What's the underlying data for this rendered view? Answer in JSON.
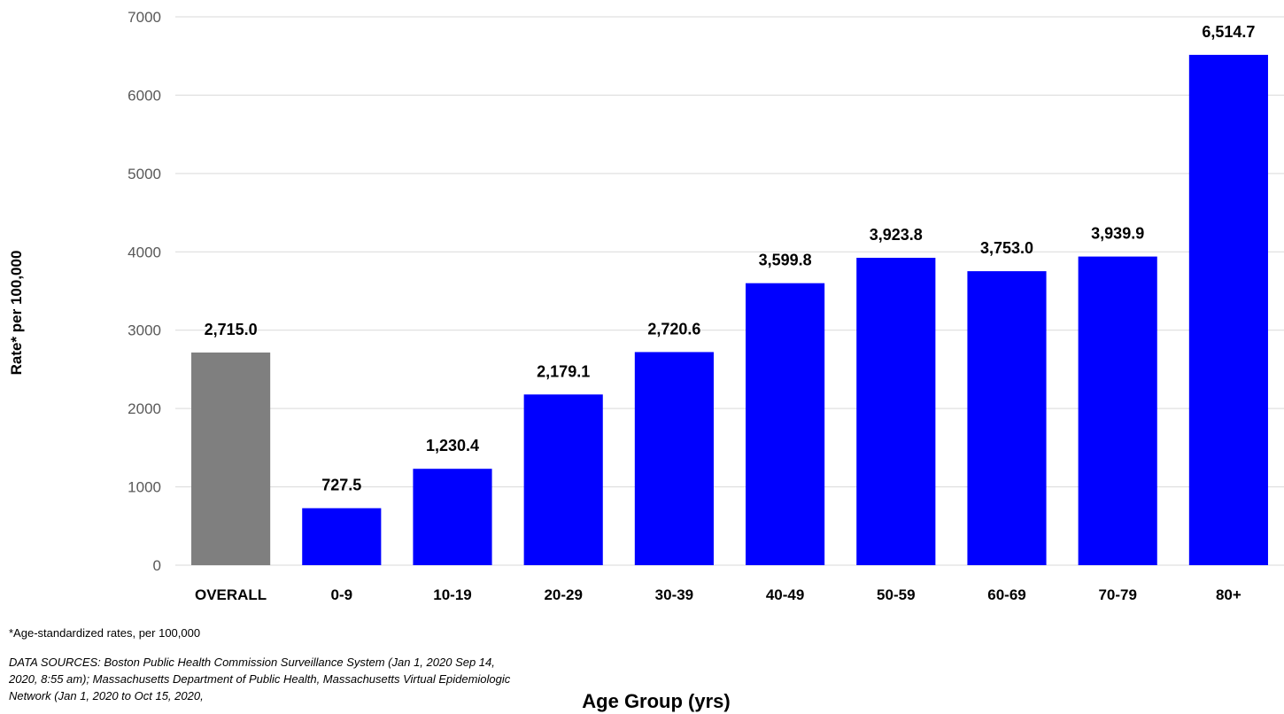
{
  "chart_data": {
    "type": "bar",
    "categories": [
      "OVERALL",
      "0-9",
      "10-19",
      "20-29",
      "30-39",
      "40-49",
      "50-59",
      "60-69",
      "70-79",
      "80+"
    ],
    "values": [
      2715.0,
      727.5,
      1230.4,
      2179.1,
      2720.6,
      3599.8,
      3923.8,
      3753.0,
      3939.9,
      6514.7
    ],
    "data_labels": [
      "2,715.0",
      "727.5",
      "1,230.4",
      "2,179.1",
      "2,720.6",
      "3,599.8",
      "3,923.8",
      "3,753.0",
      "3,939.9",
      "6,514.7"
    ],
    "bar_colors": [
      "#7f7f7f",
      "#0000ff",
      "#0000ff",
      "#0000ff",
      "#0000ff",
      "#0000ff",
      "#0000ff",
      "#0000ff",
      "#0000ff",
      "#0000ff"
    ],
    "gridline_color": "#d9d9d9",
    "yticks": [
      "0",
      "1000",
      "2000",
      "3000",
      "4000",
      "5000",
      "6000",
      "7000"
    ],
    "ylim": [
      0,
      7000
    ],
    "grid": true,
    "xlabel": "Age Group (yrs)",
    "ylabel": "Rate* per 100,000"
  },
  "notes": {
    "footnote": "*Age-standardized rates, per 100,000",
    "sources": "DATA SOURCES: Boston Public Health Commission Surveillance System (Jan 1, 2020 Sep 14, 2020, 8:55 am);  Massachusetts Department of Public Health, Massachusetts Virtual Epidemiologic Network (Jan 1, 2020 to Oct 15, 2020,"
  }
}
